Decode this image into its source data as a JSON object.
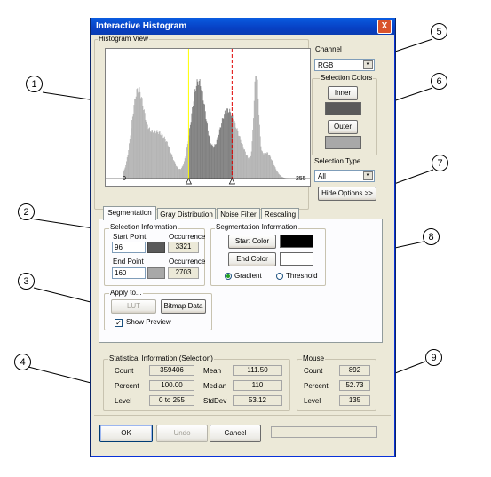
{
  "window": {
    "title": "Interactive Histogram",
    "close_label": "X"
  },
  "histogram": {
    "group_label": "Histogram View",
    "axis_min": "0",
    "axis_max": "255",
    "selection_start": 96,
    "selection_end": 160,
    "inner_color": "#808080",
    "outer_color": "#b4b4b4"
  },
  "channel": {
    "label": "Channel",
    "value": "RGB"
  },
  "selection_colors": {
    "label": "Selection Colors",
    "inner_button": "Inner",
    "outer_button": "Outer",
    "inner_swatch": "#5a5a5a",
    "outer_swatch": "#a8a8a8"
  },
  "selection_type": {
    "label": "Selection Type",
    "value": "All"
  },
  "hide_options_button": "Hide Options >>",
  "tabs": [
    "Segmentation",
    "Gray Distribution",
    "Noise Filter",
    "Rescaling"
  ],
  "selection_info": {
    "label": "Selection Information",
    "start_point_label": "Start Point",
    "start_point_value": "96",
    "start_occurrence_label": "Occurrence",
    "start_occurrence_value": "3321",
    "end_point_label": "End Point",
    "end_point_value": "160",
    "end_occurrence_label": "Occurrence",
    "end_occurrence_value": "2703"
  },
  "segmentation_info": {
    "label": "Segmentation Information",
    "start_color_button": "Start Color",
    "end_color_button": "End Color",
    "start_color": "#000000",
    "end_color": "#ffffff",
    "gradient_label": "Gradient",
    "threshold_label": "Threshold"
  },
  "apply_to": {
    "label": "Apply to...",
    "lut_button": "LUT",
    "bitmap_button": "Bitmap Data",
    "show_preview_label": "Show Preview"
  },
  "statistics": {
    "label": "Statistical Information (Selection)",
    "count_label": "Count",
    "count_value": "359406",
    "percent_label": "Percent",
    "percent_value": "100.00",
    "level_label": "Level",
    "level_value": "0 to 255",
    "mean_label": "Mean",
    "mean_value": "111.50",
    "median_label": "Median",
    "median_value": "110",
    "stddev_label": "StdDev",
    "stddev_value": "53.12"
  },
  "mouse": {
    "label": "Mouse",
    "count_label": "Count",
    "count_value": "892",
    "percent_label": "Percent",
    "percent_value": "52.73",
    "level_label": "Level",
    "level_value": "135"
  },
  "footer": {
    "ok": "OK",
    "undo": "Undo",
    "cancel": "Cancel"
  },
  "callouts": [
    "1",
    "2",
    "3",
    "4",
    "5",
    "6",
    "7",
    "8",
    "9"
  ]
}
